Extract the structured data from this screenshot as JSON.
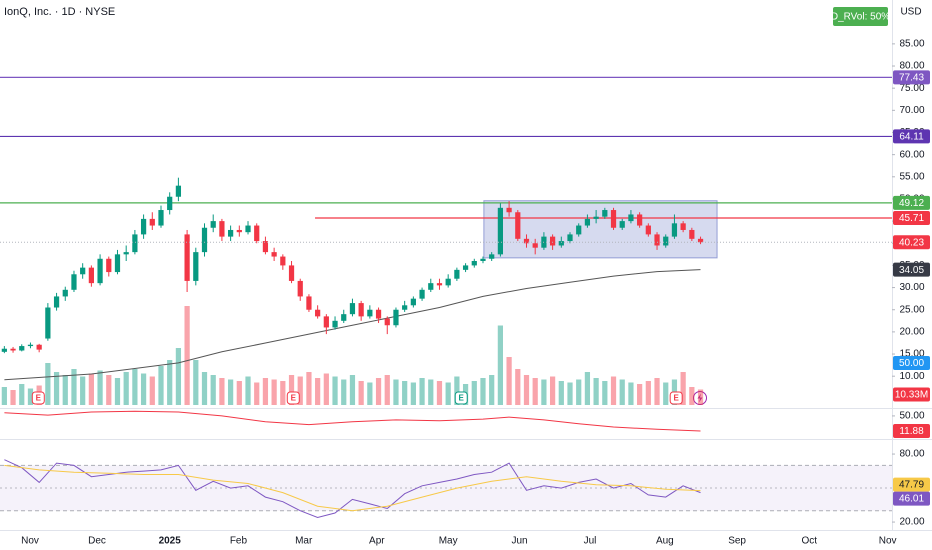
{
  "chart_data": [
    {
      "type": "candlestick",
      "title": "IonQ, Inc. · 1D · NYSE",
      "currency": "USD",
      "xlim": [
        -0.5,
        102
      ],
      "ylim": [
        3.5,
        94.9
      ],
      "xticks": [
        {
          "value": 2.95,
          "label": "Nov"
        },
        {
          "value": 10.65,
          "label": "Dec"
        },
        {
          "value": 19.0,
          "label": "2025"
        },
        {
          "value": 26.9,
          "label": "Feb"
        },
        {
          "value": 34.4,
          "label": "Mar"
        },
        {
          "value": 42.8,
          "label": "Apr"
        },
        {
          "value": 51.0,
          "label": "May"
        },
        {
          "value": 59.2,
          "label": "Jun"
        },
        {
          "value": 67.3,
          "label": "Jul"
        },
        {
          "value": 75.9,
          "label": "Aug"
        },
        {
          "value": 84.2,
          "label": "Sep"
        },
        {
          "value": 92.5,
          "label": "Oct"
        },
        {
          "value": 101.5,
          "label": "Nov"
        }
      ],
      "yticks": [
        {
          "value": 10,
          "label": "10.00"
        },
        {
          "value": 15,
          "label": "15.00"
        },
        {
          "value": 20,
          "label": "20.00"
        },
        {
          "value": 25,
          "label": "25.00"
        },
        {
          "value": 30,
          "label": "30.00"
        },
        {
          "value": 35,
          "label": "35.00"
        },
        {
          "value": 40,
          "label": "40.00"
        },
        {
          "value": 45,
          "label": "45.00"
        },
        {
          "value": 50,
          "label": "50.00"
        },
        {
          "value": 55,
          "label": "55.00"
        },
        {
          "value": 60,
          "label": "60.00"
        },
        {
          "value": 65,
          "label": "65.00"
        },
        {
          "value": 70,
          "label": "70.00"
        },
        {
          "value": 75,
          "label": "75.00"
        },
        {
          "value": 80,
          "label": "80.00"
        },
        {
          "value": 85,
          "label": "85.00"
        }
      ],
      "grid": false,
      "up_color": "#089981",
      "down_color": "#f23645",
      "candles": [
        [
          15.5,
          16.8,
          15.2,
          16.2
        ],
        [
          16.2,
          16.6,
          15.3,
          15.8
        ],
        [
          15.8,
          17.2,
          15.6,
          16.8
        ],
        [
          16.8,
          17.6,
          16.3,
          17.1
        ],
        [
          17.1,
          17.3,
          15.4,
          16.0
        ],
        [
          18.5,
          26.5,
          18.0,
          25.5
        ],
        [
          25.5,
          28.8,
          24.8,
          28.0
        ],
        [
          28.0,
          30.2,
          27.0,
          29.5
        ],
        [
          29.5,
          33.8,
          29.0,
          33.0
        ],
        [
          33.0,
          35.5,
          32.0,
          34.5
        ],
        [
          34.5,
          35.0,
          30.2,
          31.0
        ],
        [
          31.0,
          37.5,
          30.5,
          36.5
        ],
        [
          36.5,
          37.0,
          32.5,
          33.5
        ],
        [
          33.5,
          38.5,
          33.0,
          37.5
        ],
        [
          37.5,
          39.5,
          36.0,
          38.0
        ],
        [
          38.0,
          43.0,
          37.5,
          42.0
        ],
        [
          42.0,
          46.5,
          41.0,
          45.5
        ],
        [
          45.5,
          47.0,
          43.0,
          44.0
        ],
        [
          44.0,
          48.5,
          43.5,
          47.5
        ],
        [
          47.5,
          51.5,
          46.5,
          50.5
        ],
        [
          50.5,
          54.8,
          49.5,
          53.0
        ],
        [
          42.0,
          43.0,
          29.0,
          31.5
        ],
        [
          31.5,
          39.0,
          30.5,
          38.0
        ],
        [
          38.0,
          44.5,
          37.0,
          43.5
        ],
        [
          43.5,
          46.5,
          42.5,
          45.0
        ],
        [
          45.0,
          45.5,
          40.5,
          41.5
        ],
        [
          41.5,
          44.0,
          40.5,
          43.0
        ],
        [
          43.0,
          44.0,
          41.5,
          42.5
        ],
        [
          42.5,
          45.0,
          42.0,
          44.0
        ],
        [
          44.0,
          44.5,
          40.0,
          40.5
        ],
        [
          40.5,
          41.5,
          37.5,
          38.0
        ],
        [
          38.0,
          39.0,
          36.0,
          37.0
        ],
        [
          37.0,
          37.5,
          34.0,
          35.0
        ],
        [
          35.0,
          36.0,
          31.0,
          31.5
        ],
        [
          31.5,
          32.0,
          27.0,
          28.0
        ],
        [
          28.0,
          28.5,
          24.5,
          25.0
        ],
        [
          25.0,
          26.0,
          23.0,
          23.5
        ],
        [
          23.5,
          24.0,
          19.5,
          21.0
        ],
        [
          21.0,
          23.5,
          20.5,
          22.5
        ],
        [
          22.5,
          25.0,
          22.0,
          24.0
        ],
        [
          24.0,
          27.5,
          23.5,
          26.5
        ],
        [
          26.5,
          27.0,
          22.5,
          23.5
        ],
        [
          23.5,
          26.0,
          23.0,
          25.0
        ],
        [
          25.0,
          25.5,
          22.0,
          23.0
        ],
        [
          23.0,
          23.5,
          19.5,
          21.5
        ],
        [
          21.5,
          25.5,
          21.0,
          25.0
        ],
        [
          25.0,
          27.0,
          24.5,
          26.0
        ],
        [
          26.0,
          28.0,
          25.5,
          27.5
        ],
        [
          27.5,
          30.0,
          27.0,
          29.5
        ],
        [
          29.5,
          32.0,
          29.0,
          31.0
        ],
        [
          31.0,
          32.0,
          29.5,
          30.5
        ],
        [
          30.5,
          33.0,
          30.0,
          32.0
        ],
        [
          32.0,
          34.5,
          31.5,
          34.0
        ],
        [
          34.0,
          35.5,
          33.5,
          35.0
        ],
        [
          35.0,
          36.5,
          34.5,
          36.0
        ],
        [
          36.0,
          37.0,
          35.5,
          36.5
        ],
        [
          36.5,
          38.0,
          36.0,
          37.5
        ],
        [
          37.5,
          49.0,
          37.0,
          48.0
        ],
        [
          48.0,
          49.5,
          46.0,
          47.0
        ],
        [
          47.0,
          47.5,
          40.5,
          41.0
        ],
        [
          41.0,
          42.0,
          39.0,
          40.0
        ],
        [
          40.0,
          41.0,
          37.5,
          39.0
        ],
        [
          39.0,
          42.5,
          38.5,
          41.5
        ],
        [
          41.5,
          42.0,
          38.5,
          39.5
        ],
        [
          39.5,
          41.5,
          39.0,
          40.5
        ],
        [
          40.5,
          42.5,
          40.0,
          42.0
        ],
        [
          42.0,
          44.5,
          41.5,
          44.0
        ],
        [
          44.0,
          46.5,
          43.5,
          45.5
        ],
        [
          45.5,
          47.5,
          44.5,
          46.0
        ],
        [
          46.0,
          48.0,
          45.5,
          47.5
        ],
        [
          47.5,
          48.0,
          43.0,
          43.5
        ],
        [
          43.5,
          45.5,
          43.0,
          45.0
        ],
        [
          45.0,
          47.5,
          44.5,
          46.5
        ],
        [
          46.5,
          47.0,
          43.5,
          44.0
        ],
        [
          44.0,
          44.5,
          41.5,
          42.0
        ],
        [
          42.0,
          42.5,
          38.5,
          39.5
        ],
        [
          39.5,
          42.0,
          39.0,
          41.5
        ],
        [
          41.5,
          46.5,
          41.0,
          44.5
        ],
        [
          44.5,
          45.0,
          42.5,
          43.0
        ],
        [
          43.0,
          43.5,
          40.5,
          41.0
        ],
        [
          41.0,
          41.5,
          39.8,
          40.23
        ]
      ],
      "volume": {
        "ylim": [
          0,
          100
        ],
        "values": [
          12,
          10,
          14,
          11,
          13,
          28,
          22,
          20,
          24,
          19,
          21,
          23,
          20,
          18,
          22,
          24,
          21,
          19,
          26,
          30,
          38,
          66,
          30,
          22,
          20,
          18,
          17,
          16,
          19,
          15,
          18,
          17,
          16,
          20,
          19,
          22,
          18,
          21,
          19,
          17,
          20,
          16,
          15,
          18,
          20,
          17,
          16,
          15,
          18,
          17,
          16,
          15,
          19,
          14,
          16,
          18,
          20,
          53,
          32,
          24,
          20,
          18,
          17,
          19,
          16,
          15,
          17,
          22,
          18,
          16,
          19,
          17,
          15,
          14,
          16,
          18,
          15,
          17,
          22,
          12,
          10.33
        ],
        "last": {
          "value": 10.33,
          "label": "10.33M"
        }
      },
      "ma": {
        "color": "#555555",
        "x": [
          0,
          10,
          20,
          25,
          30,
          35,
          40,
          45,
          50,
          55,
          60,
          65,
          70,
          75,
          80
        ],
        "values": [
          9.2,
          10.5,
          13,
          15.5,
          17.5,
          19.5,
          21.5,
          23.5,
          25.5,
          28,
          29.8,
          31.2,
          32.6,
          33.6,
          34.05
        ]
      },
      "levels": [
        {
          "value": 77.43,
          "color": "#7e57c2"
        },
        {
          "value": 64.11,
          "color": "#5e35b1"
        },
        {
          "value": 49.12,
          "color": "#4caf50"
        },
        {
          "value": 45.71,
          "color": "#f23645",
          "from": 35.7
        }
      ],
      "box": {
        "x": [
          55.1,
          81.9
        ],
        "y": [
          36.7,
          49.6
        ],
        "color": "#5c6bc0"
      },
      "events": [
        {
          "x": 3.9,
          "label": "E",
          "color": "#f23645"
        },
        {
          "x": 33.2,
          "label": "E",
          "color": "#f23645"
        },
        {
          "x": 52.5,
          "label": "E",
          "color": "#089981"
        },
        {
          "x": 77.2,
          "label": "E",
          "color": "#f23645"
        }
      ],
      "rvol": {
        "text": "D_RVol: 50%",
        "color": "#4caf50",
        "badge": {
          "value": 50,
          "label": "50.00"
        },
        "badge_color": "#2196f3"
      }
    },
    {
      "type": "line",
      "ylim": [
        -11,
        65
      ],
      "yticks": [
        {
          "value": 50,
          "label": "50.00"
        }
      ],
      "series": [
        {
          "color": "#f23645",
          "x": [
            0,
            5,
            10,
            15,
            20,
            25,
            30,
            35,
            40,
            45,
            50,
            55,
            58,
            62,
            66,
            70,
            75,
            80
          ],
          "values": [
            58,
            52,
            60,
            62,
            60,
            50,
            35,
            28,
            35,
            40,
            38,
            42,
            47,
            40,
            30,
            22,
            16,
            11.88
          ]
        }
      ]
    },
    {
      "type": "line",
      "ylim": [
        13,
        92.4
      ],
      "yticks": [
        {
          "value": 80,
          "label": "80.00"
        },
        {
          "value": 20,
          "label": "20.00"
        }
      ],
      "band": [
        30,
        70
      ],
      "midline": 50,
      "series": [
        {
          "color": "#7e57c2",
          "x": [
            0,
            2,
            4,
            6,
            8,
            10,
            12,
            14,
            16,
            18,
            20,
            22,
            24,
            26,
            28,
            30,
            32,
            34,
            36,
            38,
            40,
            42,
            44,
            46,
            48,
            50,
            52,
            54,
            56,
            58,
            60,
            62,
            64,
            66,
            68,
            70,
            72,
            74,
            76,
            78,
            80
          ],
          "values": [
            75,
            68,
            55,
            72,
            70,
            60,
            62,
            64,
            65,
            66,
            70,
            48,
            56,
            50,
            52,
            42,
            38,
            30,
            24,
            28,
            40,
            36,
            32,
            45,
            52,
            55,
            58,
            62,
            64,
            72,
            48,
            52,
            50,
            55,
            58,
            50,
            54,
            44,
            42,
            52,
            46.01
          ]
        },
        {
          "color": "#f7c948",
          "x": [
            0,
            4,
            8,
            12,
            16,
            20,
            24,
            28,
            32,
            36,
            40,
            44,
            48,
            52,
            56,
            60,
            64,
            68,
            72,
            76,
            80
          ],
          "values": [
            70,
            66,
            64,
            63,
            62,
            62,
            57,
            54,
            46,
            34,
            30,
            34,
            42,
            50,
            56,
            60,
            56,
            53,
            52,
            49,
            47.79
          ]
        }
      ]
    }
  ]
}
